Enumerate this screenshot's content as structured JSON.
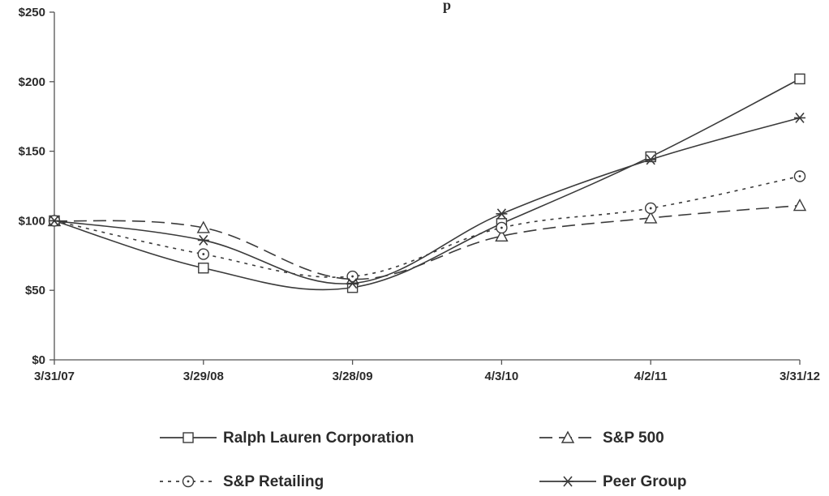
{
  "chart_data": {
    "type": "line",
    "title": "p",
    "xlabel": "",
    "ylabel": "",
    "categories": [
      "3/31/07",
      "3/29/08",
      "3/28/09",
      "4/3/10",
      "4/2/11",
      "3/31/12"
    ],
    "ylim": [
      0,
      250
    ],
    "yticks": [
      "$0",
      "$50",
      "$100",
      "$150",
      "$200",
      "$250"
    ],
    "ytick_values": [
      0,
      50,
      100,
      150,
      200,
      250
    ],
    "grid": false,
    "legend_placement": "bottom",
    "series": [
      {
        "name": "Ralph Lauren Corporation",
        "marker": "square",
        "dash": "solid",
        "values": [
          100,
          66,
          52,
          98,
          146,
          202
        ]
      },
      {
        "name": "S&P 500",
        "marker": "triangle",
        "dash": "dashed",
        "values": [
          100,
          95,
          58,
          89,
          102,
          111
        ]
      },
      {
        "name": "S&P Retailing",
        "marker": "circle",
        "dash": "dotted",
        "values": [
          100,
          76,
          60,
          95,
          109,
          132
        ]
      },
      {
        "name": "Peer Group",
        "marker": "asterisk",
        "dash": "solid",
        "values": [
          100,
          86,
          55,
          105,
          144,
          174
        ]
      }
    ],
    "colors": {
      "line": "#3a3a3a",
      "axis": "#555555",
      "text": "#2b2b2b"
    }
  }
}
